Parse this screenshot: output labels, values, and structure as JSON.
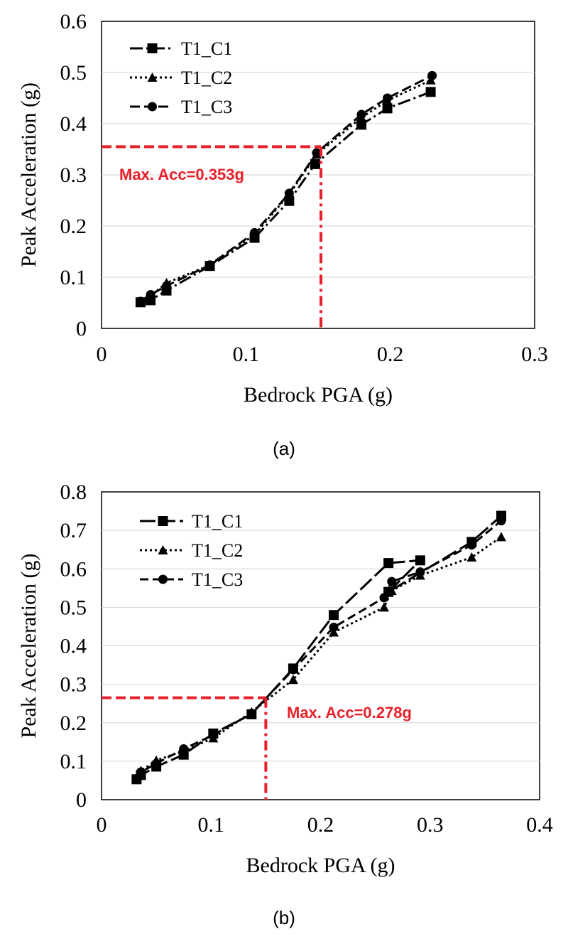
{
  "chart_data": [
    {
      "type": "line",
      "caption": "(a)",
      "xlabel": "Bedrock PGA (g)",
      "ylabel": "Peak Acceleration (g)",
      "xlim": [
        0,
        0.3
      ],
      "ylim": [
        0,
        0.6
      ],
      "xticks": [
        0,
        0.1,
        0.2,
        0.3
      ],
      "xtick_labels": [
        "0",
        "0.1",
        "0.2",
        "0.3"
      ],
      "yticks": [
        0,
        0.1,
        0.2,
        0.3,
        0.4,
        0.5,
        0.6
      ],
      "ytick_labels": [
        "0",
        "0.1",
        "0.2",
        "0.3",
        "0.4",
        "0.5",
        "0.6"
      ],
      "grid": "horizontal",
      "legend": "top-left",
      "series": [
        {
          "name": "T1_C1",
          "marker": "square",
          "dash": "18,5,3,5",
          "x": [
            0.027,
            0.034,
            0.045,
            0.075,
            0.106,
            0.13,
            0.148,
            0.18,
            0.198,
            0.228
          ],
          "y": [
            0.051,
            0.055,
            0.074,
            0.122,
            0.177,
            0.249,
            0.321,
            0.398,
            0.43,
            0.462
          ]
        },
        {
          "name": "T1_C2",
          "marker": "triangle",
          "dash": "3,4",
          "x": [
            0.027,
            0.034,
            0.045,
            0.075,
            0.106,
            0.13,
            0.149,
            0.18,
            0.198,
            0.228
          ],
          "y": [
            0.052,
            0.063,
            0.089,
            0.123,
            0.183,
            0.262,
            0.34,
            0.412,
            0.445,
            0.485
          ]
        },
        {
          "name": "T1_C3",
          "marker": "circle",
          "dash": "14,6",
          "x": [
            0.027,
            0.034,
            0.045,
            0.075,
            0.106,
            0.13,
            0.149,
            0.18,
            0.198,
            0.229
          ],
          "y": [
            0.053,
            0.066,
            0.083,
            0.124,
            0.187,
            0.264,
            0.343,
            0.418,
            0.45,
            0.494
          ]
        }
      ],
      "annotation": {
        "text": "Max. Acc=0.353g",
        "x": 0.152,
        "y": 0.355,
        "color": "#e8202a"
      }
    },
    {
      "type": "line",
      "caption": "(b)",
      "xlabel": "Bedrock PGA (g)",
      "ylabel": "Peak Acceleration (g)",
      "xlim": [
        0,
        0.4
      ],
      "ylim": [
        0,
        0.8
      ],
      "xticks": [
        0,
        0.1,
        0.2,
        0.3,
        0.4
      ],
      "xtick_labels": [
        "0",
        "0.1",
        "0.2",
        "0.3",
        "0.4"
      ],
      "yticks": [
        0,
        0.1,
        0.2,
        0.3,
        0.4,
        0.5,
        0.6,
        0.7,
        0.8
      ],
      "ytick_labels": [
        "0",
        "0.1",
        "0.2",
        "0.3",
        "0.4",
        "0.5",
        "0.6",
        "0.7",
        "0.8"
      ],
      "grid": "horizontal",
      "legend": "top-left",
      "series": [
        {
          "name": "T1_C1",
          "marker": "square",
          "dash": "22,6",
          "x": [
            0.032,
            0.036,
            0.05,
            0.075,
            0.102,
            0.137,
            0.175,
            0.212,
            0.262,
            0.291,
            0.262,
            0.338,
            0.365
          ],
          "y": [
            0.053,
            0.064,
            0.086,
            0.117,
            0.172,
            0.222,
            0.341,
            0.48,
            0.615,
            0.622,
            0.54,
            0.67,
            0.738
          ]
        },
        {
          "name": "T1_C2",
          "marker": "triangle",
          "dash": "3,4",
          "x": [
            0.032,
            0.036,
            0.05,
            0.075,
            0.102,
            0.137,
            0.175,
            0.212,
            0.258,
            0.265,
            0.291,
            0.338,
            0.365
          ],
          "y": [
            0.057,
            0.075,
            0.102,
            0.127,
            0.16,
            0.228,
            0.312,
            0.435,
            0.5,
            0.543,
            0.583,
            0.63,
            0.683
          ]
        },
        {
          "name": "T1_C3",
          "marker": "circle",
          "dash": "12,6",
          "x": [
            0.032,
            0.036,
            0.05,
            0.075,
            0.102,
            0.137,
            0.175,
            0.212,
            0.258,
            0.265,
            0.291,
            0.338,
            0.365
          ],
          "y": [
            0.055,
            0.072,
            0.094,
            0.132,
            0.168,
            0.224,
            0.338,
            0.448,
            0.525,
            0.567,
            0.592,
            0.662,
            0.725
          ]
        }
      ],
      "annotation": {
        "text": "Max. Acc=0.278g",
        "x": 0.15,
        "y": 0.265,
        "color": "#e8202a"
      }
    }
  ]
}
